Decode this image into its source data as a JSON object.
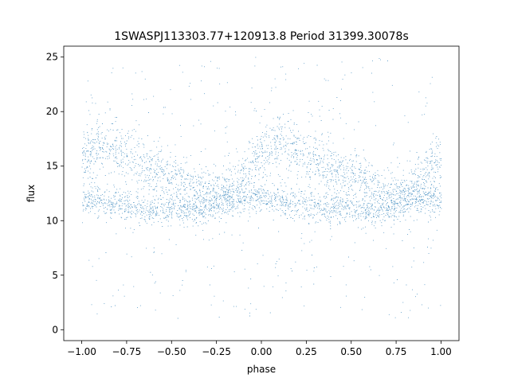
{
  "chart_data": {
    "type": "scatter",
    "title": "1SWASPJ113303.77+120913.8 Period 31399.30078s",
    "xlabel": "phase",
    "ylabel": "flux",
    "xlim": [
      -1.1,
      1.1
    ],
    "ylim": [
      -1.0,
      26.0
    ],
    "x_ticks": [
      -1.0,
      -0.75,
      -0.5,
      -0.25,
      0.0,
      0.25,
      0.5,
      0.75,
      1.0
    ],
    "x_tick_labels": [
      "−1.00",
      "−0.75",
      "−0.50",
      "−0.25",
      "0.00",
      "0.25",
      "0.50",
      "0.75",
      "1.00"
    ],
    "y_ticks": [
      0,
      5,
      10,
      15,
      20,
      25
    ],
    "y_tick_labels": [
      "0",
      "5",
      "10",
      "15",
      "20",
      "25"
    ],
    "grid": false,
    "legend": "none",
    "point_color": "#1f77b4",
    "series": [
      {
        "description_role": "upper-branch",
        "x": [
          -1.0,
          -0.9,
          -0.8,
          -0.7,
          -0.6,
          -0.5,
          -0.4,
          -0.3,
          -0.2,
          -0.1,
          0.0,
          0.1,
          0.2,
          0.3,
          0.4,
          0.5,
          0.6,
          0.7,
          0.8,
          0.9,
          1.0
        ],
        "y": [
          16.0,
          17.0,
          16.5,
          15.5,
          14.8,
          14.0,
          13.5,
          12.8,
          12.5,
          14.0,
          16.0,
          17.5,
          16.5,
          15.5,
          14.5,
          14.0,
          13.2,
          12.5,
          12.3,
          14.0,
          16.0
        ]
      },
      {
        "description_role": "lower-branch",
        "x": [
          -1.0,
          -0.9,
          -0.8,
          -0.7,
          -0.6,
          -0.5,
          -0.4,
          -0.3,
          -0.2,
          -0.1,
          0.0,
          0.1,
          0.2,
          0.3,
          0.4,
          0.5,
          0.6,
          0.7,
          0.8,
          0.9,
          1.0
        ],
        "y": [
          12.0,
          11.8,
          11.5,
          11.3,
          11.0,
          11.0,
          11.0,
          11.0,
          12.0,
          12.0,
          12.0,
          11.8,
          11.5,
          11.3,
          11.2,
          11.0,
          11.0,
          11.0,
          12.0,
          12.0,
          12.0
        ]
      }
    ]
  }
}
